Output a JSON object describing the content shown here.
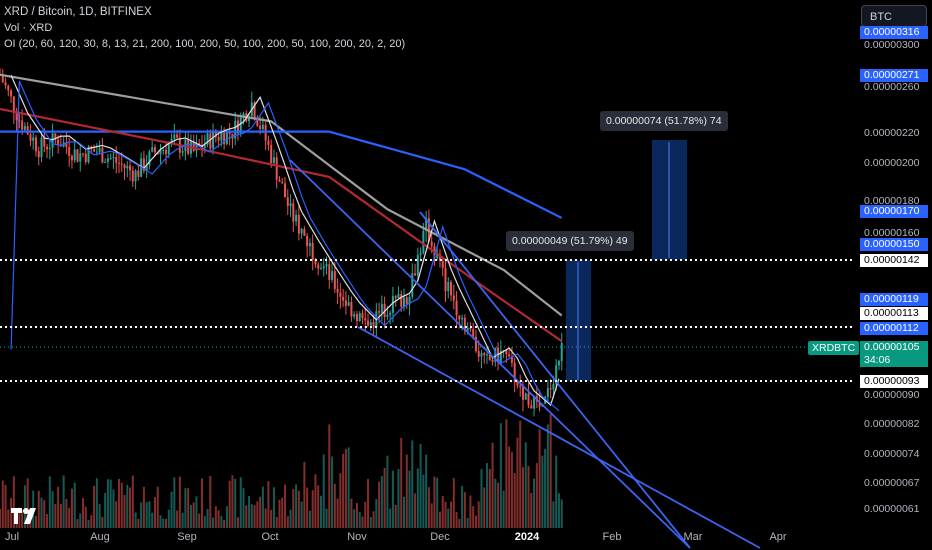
{
  "header": {
    "symbol_line": "XRD / Bitcoin, 1D, BITFINEX",
    "vol_line": "Vol · XRD",
    "oi_line": "OI (20, 60, 120, 30, 8, 13, 21, 200, 100, 200, 50, 100, 200, 50, 100, 200, 20, 2, 20)"
  },
  "currency_button": "BTC",
  "price_axis": [
    {
      "text": "0.00000316",
      "style": "blue"
    },
    {
      "text": "0.00000300",
      "style": "plain"
    },
    {
      "text": "0.00000271",
      "style": "blue"
    },
    {
      "text": "0.00000260",
      "style": "plain"
    },
    {
      "text": "0.00000220",
      "style": "plain"
    },
    {
      "text": "0.00000200",
      "style": "plain"
    },
    {
      "text": "0.00000180",
      "style": "plain"
    },
    {
      "text": "0.00000170",
      "style": "blue"
    },
    {
      "text": "0.00000160",
      "style": "plain"
    },
    {
      "text": "0.00000150",
      "style": "blue"
    },
    {
      "text": "0.00000142",
      "style": "white"
    },
    {
      "text": "0.00000119",
      "style": "blue"
    },
    {
      "text": "0.00000113",
      "style": "white"
    },
    {
      "text": "0.00000112",
      "style": "blue"
    },
    {
      "text": "0.00000105",
      "style": "teal"
    },
    {
      "text": "0.00000093",
      "style": "white"
    },
    {
      "text": "0.00000090",
      "style": "plain"
    },
    {
      "text": "0.00000082",
      "style": "plain"
    },
    {
      "text": "0.00000074",
      "style": "plain"
    },
    {
      "text": "0.00000067",
      "style": "plain"
    },
    {
      "text": "0.00000061",
      "style": "plain"
    }
  ],
  "current_price": {
    "symbol_tag": "XRDBTC",
    "value": "0.00000105",
    "countdown": "34:06"
  },
  "time_axis": [
    {
      "text": "Jul",
      "bold": false
    },
    {
      "text": "Aug",
      "bold": false
    },
    {
      "text": "Sep",
      "bold": false
    },
    {
      "text": "Oct",
      "bold": false
    },
    {
      "text": "Nov",
      "bold": false
    },
    {
      "text": "Dec",
      "bold": false
    },
    {
      "text": "2024",
      "bold": true
    },
    {
      "text": "Feb",
      "bold": false
    },
    {
      "text": "Mar",
      "bold": false
    },
    {
      "text": "Apr",
      "bold": false
    }
  ],
  "measure_tooltips": [
    "0.00000074 (51.78%) 74",
    "0.00000049 (51.79%) 49"
  ],
  "horizontal_levels": [
    "0.00000142",
    "0.00000113",
    "0.00000093"
  ],
  "colors": {
    "up_candle": "#26a69a",
    "down_candle": "#ef5350",
    "ma_blue": "#2962ff",
    "ma_red": "#b22833",
    "ma_gray": "#9e9e9e",
    "ma_white": "#e0e0e0",
    "trendline": "#3d63f0",
    "measure_box": "#0c2f6b"
  },
  "chart_data": {
    "type": "candlestick",
    "title": "XRD / Bitcoin, 1D, BITFINEX",
    "x_range": [
      "2023-06-28",
      "2024-04-15"
    ],
    "y_scale": "log",
    "y_range": [
      5.8e-07,
      3.35e-06
    ],
    "close_path": [
      {
        "d": "2023-06-28",
        "c": 2.7e-06
      },
      {
        "d": "2023-07-05",
        "c": 2.32e-06
      },
      {
        "d": "2023-07-12",
        "c": 2.1e-06
      },
      {
        "d": "2023-07-19",
        "c": 2.16e-06
      },
      {
        "d": "2023-07-26",
        "c": 2.05e-06
      },
      {
        "d": "2023-08-02",
        "c": 2.08e-06
      },
      {
        "d": "2023-08-09",
        "c": 2e-06
      },
      {
        "d": "2023-08-16",
        "c": 1.92e-06
      },
      {
        "d": "2023-08-23",
        "c": 2.07e-06
      },
      {
        "d": "2023-08-30",
        "c": 2.14e-06
      },
      {
        "d": "2023-09-06",
        "c": 2.07e-06
      },
      {
        "d": "2023-09-13",
        "c": 2.18e-06
      },
      {
        "d": "2023-09-20",
        "c": 2.22e-06
      },
      {
        "d": "2023-09-27",
        "c": 2.45e-06
      },
      {
        "d": "2023-10-04",
        "c": 2.05e-06
      },
      {
        "d": "2023-10-11",
        "c": 1.68e-06
      },
      {
        "d": "2023-10-18",
        "c": 1.5e-06
      },
      {
        "d": "2023-10-25",
        "c": 1.35e-06
      },
      {
        "d": "2023-11-01",
        "c": 1.22e-06
      },
      {
        "d": "2023-11-08",
        "c": 1.14e-06
      },
      {
        "d": "2023-11-15",
        "c": 1.22e-06
      },
      {
        "d": "2023-11-22",
        "c": 1.26e-06
      },
      {
        "d": "2023-11-29",
        "c": 1.6e-06
      },
      {
        "d": "2023-12-06",
        "c": 1.32e-06
      },
      {
        "d": "2023-12-13",
        "c": 1.15e-06
      },
      {
        "d": "2023-12-20",
        "c": 1e-06
      },
      {
        "d": "2023-12-27",
        "c": 1.04e-06
      },
      {
        "d": "2024-01-03",
        "c": 9e-07
      },
      {
        "d": "2024-01-10",
        "c": 8.5e-07
      },
      {
        "d": "2024-01-17",
        "c": 1.05e-06
      }
    ],
    "moving_averages": [
      {
        "color": "gray",
        "points": [
          [
            2.7e-06,
            "2023-06-28"
          ],
          [
            2.3e-06,
            "2023-10-04"
          ],
          [
            1.7e-06,
            "2023-11-15"
          ],
          [
            1.38e-06,
            "2023-12-27"
          ],
          [
            1.18e-06,
            "2024-01-17"
          ]
        ]
      },
      {
        "color": "blue",
        "points": [
          [
            2.22e-06,
            "2023-06-28"
          ],
          [
            2.22e-06,
            "2023-10-25"
          ],
          [
            1.95e-06,
            "2023-12-13"
          ],
          [
            1.65e-06,
            "2024-01-17"
          ]
        ]
      },
      {
        "color": "red",
        "points": [
          [
            2.4e-06,
            "2023-06-28"
          ],
          [
            2.1e-06,
            "2023-09-06"
          ],
          [
            1.9e-06,
            "2023-10-25"
          ],
          [
            1.3e-06,
            "2023-12-20"
          ],
          [
            1.08e-06,
            "2024-01-17"
          ]
        ]
      }
    ],
    "volume_peaks": [
      "2023-10-25",
      "2023-11-22",
      "2023-12-27",
      "2024-01-10"
    ]
  }
}
